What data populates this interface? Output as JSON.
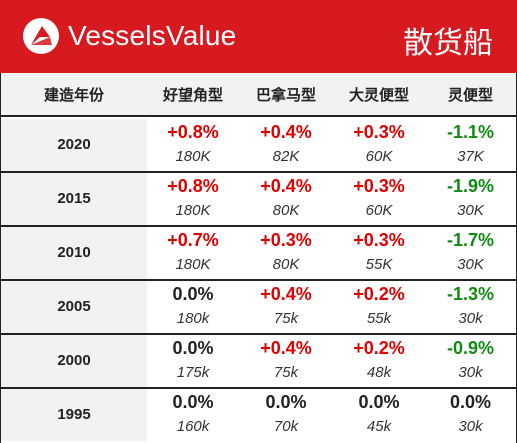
{
  "header": {
    "brand": "VesselsValue",
    "category": "散货船",
    "logo_icon": "vesselsvalue-logo-icon"
  },
  "columns": [
    "建造年份",
    "好望角型",
    "巴拿马型",
    "大灵便型",
    "灵便型"
  ],
  "rows": [
    {
      "year": "2020",
      "cells": [
        {
          "change": "+0.8%",
          "trend": "up",
          "size": "180K"
        },
        {
          "change": "+0.4%",
          "trend": "up",
          "size": "82K"
        },
        {
          "change": "+0.3%",
          "trend": "up",
          "size": "60K"
        },
        {
          "change": "-1.1%",
          "trend": "down",
          "size": "37K"
        }
      ]
    },
    {
      "year": "2015",
      "cells": [
        {
          "change": "+0.8%",
          "trend": "up",
          "size": "180K"
        },
        {
          "change": "+0.4%",
          "trend": "up",
          "size": "80K"
        },
        {
          "change": "+0.3%",
          "trend": "up",
          "size": "60K"
        },
        {
          "change": "-1.9%",
          "trend": "down",
          "size": "30K"
        }
      ]
    },
    {
      "year": "2010",
      "cells": [
        {
          "change": "+0.7%",
          "trend": "up",
          "size": "180K"
        },
        {
          "change": "+0.3%",
          "trend": "up",
          "size": "80K"
        },
        {
          "change": "+0.3%",
          "trend": "up",
          "size": "55K"
        },
        {
          "change": "-1.7%",
          "trend": "down",
          "size": "30K"
        }
      ]
    },
    {
      "year": "2005",
      "cells": [
        {
          "change": "0.0%",
          "trend": "flat",
          "size": "180k"
        },
        {
          "change": "+0.4%",
          "trend": "up",
          "size": "75k"
        },
        {
          "change": "+0.2%",
          "trend": "up",
          "size": "55k"
        },
        {
          "change": "-1.3%",
          "trend": "down",
          "size": "30k"
        }
      ]
    },
    {
      "year": "2000",
      "cells": [
        {
          "change": "0.0%",
          "trend": "flat",
          "size": "175k"
        },
        {
          "change": "+0.4%",
          "trend": "up",
          "size": "75k"
        },
        {
          "change": "+0.2%",
          "trend": "up",
          "size": "48k"
        },
        {
          "change": "-0.9%",
          "trend": "down",
          "size": "30k"
        }
      ]
    },
    {
      "year": "1995",
      "cells": [
        {
          "change": "0.0%",
          "trend": "flat",
          "size": "160k"
        },
        {
          "change": "0.0%",
          "trend": "flat",
          "size": "70k"
        },
        {
          "change": "0.0%",
          "trend": "flat",
          "size": "45k"
        },
        {
          "change": "0.0%",
          "trend": "flat",
          "size": "30k"
        }
      ]
    }
  ],
  "colors": {
    "banner": "#d71920",
    "up": "#e00000",
    "down": "#118a11",
    "flat": "#222222"
  }
}
